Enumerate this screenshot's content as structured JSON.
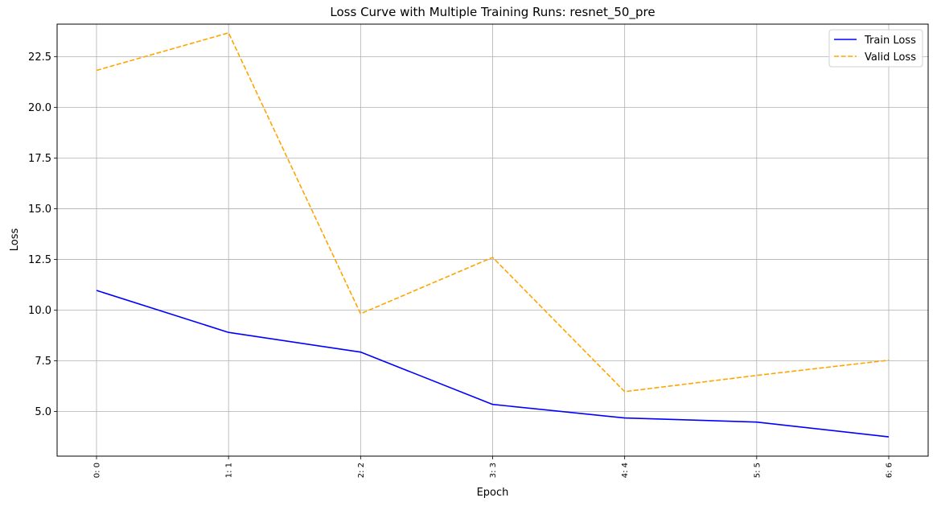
{
  "chart_data": {
    "type": "line",
    "title": "Loss Curve with Multiple Training Runs: resnet_50_pre",
    "xlabel": "Epoch",
    "ylabel": "Loss",
    "categories": [
      "0: 0",
      "1: 1",
      "2: 2",
      "3: 3",
      "4: 4",
      "5: 5",
      "6: 6"
    ],
    "ylim": [
      2.8,
      24.1
    ],
    "yticks": [
      5.0,
      7.5,
      10.0,
      12.5,
      15.0,
      17.5,
      20.0,
      22.5
    ],
    "ytick_labels": [
      "5.0",
      "7.5",
      "10.0",
      "12.5",
      "15.0",
      "17.5",
      "20.0",
      "22.5"
    ],
    "grid": true,
    "legend_position": "top-right",
    "series": [
      {
        "name": "Train Loss",
        "color": "#0000ff",
        "style": "solid",
        "values": [
          10.97,
          8.9,
          7.93,
          5.35,
          4.68,
          4.48,
          3.75
        ]
      },
      {
        "name": "Valid Loss",
        "color": "#ffa500",
        "style": "dashed",
        "values": [
          21.82,
          23.67,
          9.82,
          12.6,
          5.98,
          6.78,
          7.53
        ]
      }
    ]
  }
}
